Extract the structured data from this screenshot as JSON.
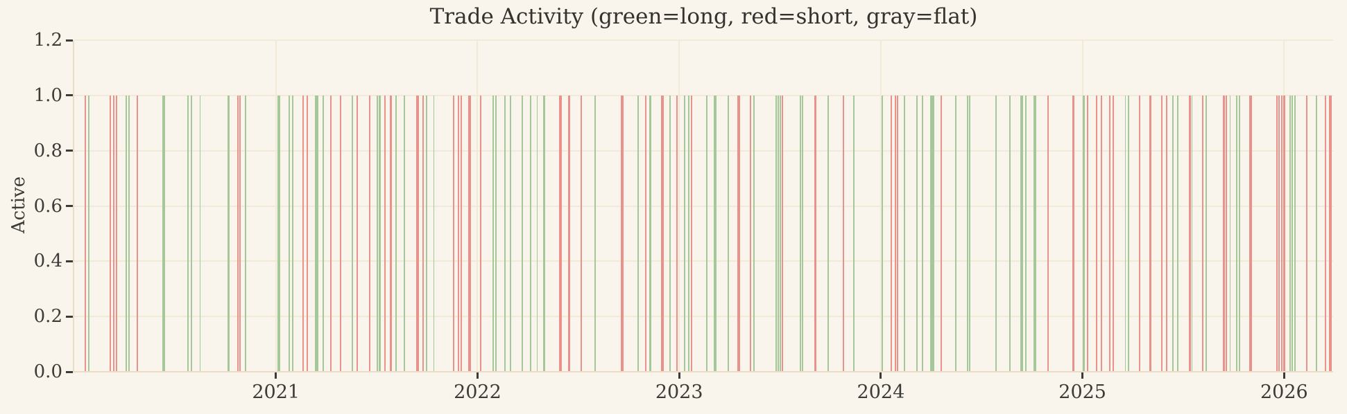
{
  "figure": {
    "background": "#faf5ec"
  },
  "chart_data": {
    "type": "bar",
    "title": "Trade Activity (green=long, red=short, gray=flat)",
    "xlabel": "",
    "ylabel": "Active",
    "x_tick_labels": [
      "2021",
      "2022",
      "2023",
      "2024",
      "2025",
      "2026"
    ],
    "x_tick_values": [
      2021,
      2022,
      2023,
      2024,
      2025,
      2026
    ],
    "xlim": [
      2020.0,
      2026.243
    ],
    "y_tick_labels": [
      "0.0",
      "0.2",
      "0.4",
      "0.6",
      "0.8",
      "1.0",
      "1.2"
    ],
    "y_tick_values": [
      0.0,
      0.2,
      0.4,
      0.6,
      0.8,
      1.0,
      1.2
    ],
    "ylim": [
      0,
      1.2
    ],
    "grid": true,
    "legend_note": "green=long, red=short, gray=flat",
    "bar_value": 1.0,
    "colors": {
      "long": "#a5c89b",
      "short": "#e9928b",
      "flat": "#b3b3b3",
      "grid": "#f2e9d7",
      "spine": "#e8dcc4",
      "text": "#3c3b37",
      "background": "#faf5ec"
    },
    "bars_format": [
      "x_year_fraction",
      "position_type",
      "width_px"
    ],
    "bars": [
      [
        2020.055,
        "short",
        2
      ],
      [
        2020.072,
        "long",
        2
      ],
      [
        2020.179,
        "short",
        2
      ],
      [
        2020.196,
        "short",
        2
      ],
      [
        2020.21,
        "short",
        2
      ],
      [
        2020.258,
        "long",
        2
      ],
      [
        2020.271,
        "long",
        2
      ],
      [
        2020.313,
        "short",
        1.5
      ],
      [
        2020.443,
        "long",
        4
      ],
      [
        2020.563,
        "long",
        2
      ],
      [
        2020.581,
        "long",
        2
      ],
      [
        2020.625,
        "long",
        1.5
      ],
      [
        2020.766,
        "long",
        2.5
      ],
      [
        2020.811,
        "short",
        2
      ],
      [
        2020.821,
        "short",
        2
      ],
      [
        2020.849,
        "long",
        2
      ],
      [
        2021.014,
        "long",
        4
      ],
      [
        2021.065,
        "long",
        2
      ],
      [
        2021.082,
        "long",
        2
      ],
      [
        2021.134,
        "short",
        2
      ],
      [
        2021.155,
        "short",
        2
      ],
      [
        2021.203,
        "long",
        5
      ],
      [
        2021.234,
        "long",
        1.5
      ],
      [
        2021.271,
        "short",
        2
      ],
      [
        2021.32,
        "short",
        2
      ],
      [
        2021.381,
        "long",
        2
      ],
      [
        2021.402,
        "short",
        2
      ],
      [
        2021.467,
        "short",
        2
      ],
      [
        2021.502,
        "long",
        2
      ],
      [
        2021.515,
        "long",
        3
      ],
      [
        2021.54,
        "short",
        2
      ],
      [
        2021.57,
        "short",
        3
      ],
      [
        2021.595,
        "long",
        2
      ],
      [
        2021.639,
        "long",
        2
      ],
      [
        2021.701,
        "short",
        4
      ],
      [
        2021.729,
        "short",
        2
      ],
      [
        2021.749,
        "long",
        2
      ],
      [
        2021.784,
        "long",
        1.5
      ],
      [
        2021.883,
        "short",
        2
      ],
      [
        2021.904,
        "short",
        2
      ],
      [
        2021.921,
        "short",
        2
      ],
      [
        2021.959,
        "short",
        4
      ],
      [
        2022.017,
        "short",
        2
      ],
      [
        2022.079,
        "long",
        2
      ],
      [
        2022.093,
        "long",
        2
      ],
      [
        2022.137,
        "long",
        2
      ],
      [
        2022.162,
        "long",
        2
      ],
      [
        2022.223,
        "long",
        2
      ],
      [
        2022.265,
        "long",
        2
      ],
      [
        2022.296,
        "long",
        1.5
      ],
      [
        2022.33,
        "long",
        3
      ],
      [
        2022.412,
        "short",
        4
      ],
      [
        2022.454,
        "short",
        3
      ],
      [
        2022.515,
        "short",
        2
      ],
      [
        2022.584,
        "long",
        2
      ],
      [
        2022.718,
        "short",
        4
      ],
      [
        2022.797,
        "long",
        2
      ],
      [
        2022.835,
        "short",
        2
      ],
      [
        2022.856,
        "long",
        3
      ],
      [
        2022.918,
        "short",
        4
      ],
      [
        2022.955,
        "long",
        2
      ],
      [
        2022.99,
        "short",
        2
      ],
      [
        2023.027,
        "long",
        2
      ],
      [
        2023.048,
        "long",
        2
      ],
      [
        2023.062,
        "short",
        2
      ],
      [
        2023.137,
        "long",
        2
      ],
      [
        2023.179,
        "long",
        4
      ],
      [
        2023.244,
        "long",
        2
      ],
      [
        2023.296,
        "short",
        4
      ],
      [
        2023.354,
        "short",
        2
      ],
      [
        2023.371,
        "long",
        2
      ],
      [
        2023.481,
        "long",
        2
      ],
      [
        2023.491,
        "long",
        2
      ],
      [
        2023.502,
        "long",
        2
      ],
      [
        2023.512,
        "short",
        2
      ],
      [
        2023.601,
        "long",
        1.5
      ],
      [
        2023.612,
        "long",
        1.5
      ],
      [
        2023.677,
        "short",
        3
      ],
      [
        2023.739,
        "long",
        1.5
      ],
      [
        2023.815,
        "short",
        2
      ],
      [
        2023.866,
        "long",
        1.5
      ],
      [
        2024.007,
        "long",
        2
      ],
      [
        2024.052,
        "short",
        2
      ],
      [
        2024.072,
        "short",
        2
      ],
      [
        2024.082,
        "short",
        2
      ],
      [
        2024.117,
        "long",
        2
      ],
      [
        2024.179,
        "long",
        2
      ],
      [
        2024.206,
        "long",
        1.5
      ],
      [
        2024.254,
        "long",
        6
      ],
      [
        2024.299,
        "short",
        2.5
      ],
      [
        2024.371,
        "long",
        2
      ],
      [
        2024.43,
        "long",
        2
      ],
      [
        2024.44,
        "long",
        2
      ],
      [
        2024.571,
        "long",
        2
      ],
      [
        2024.639,
        "long",
        2
      ],
      [
        2024.698,
        "long",
        4
      ],
      [
        2024.718,
        "long",
        2
      ],
      [
        2024.763,
        "long",
        4
      ],
      [
        2024.828,
        "short",
        2
      ],
      [
        2024.955,
        "short",
        3.5
      ],
      [
        2025.007,
        "long",
        3
      ],
      [
        2025.024,
        "short",
        2
      ],
      [
        2025.069,
        "short",
        2
      ],
      [
        2025.093,
        "short",
        2
      ],
      [
        2025.137,
        "short",
        2
      ],
      [
        2025.151,
        "short",
        2
      ],
      [
        2025.213,
        "long",
        1.5
      ],
      [
        2025.227,
        "long",
        2
      ],
      [
        2025.285,
        "short",
        2
      ],
      [
        2025.337,
        "short",
        3.5
      ],
      [
        2025.395,
        "short",
        2
      ],
      [
        2025.419,
        "short",
        2
      ],
      [
        2025.45,
        "long",
        2
      ],
      [
        2025.471,
        "long",
        2
      ],
      [
        2025.533,
        "short",
        3
      ],
      [
        2025.543,
        "long",
        1.5
      ],
      [
        2025.595,
        "short",
        2
      ],
      [
        2025.612,
        "long",
        2
      ],
      [
        2025.701,
        "short",
        2.5
      ],
      [
        2025.715,
        "short",
        2
      ],
      [
        2025.732,
        "long",
        1.5
      ],
      [
        2025.766,
        "long",
        2
      ],
      [
        2025.777,
        "long",
        2
      ],
      [
        2025.835,
        "short",
        4
      ],
      [
        2025.966,
        "short",
        2
      ],
      [
        2025.976,
        "short",
        2
      ],
      [
        2025.99,
        "short",
        2
      ],
      [
        2026.0,
        "short",
        3
      ],
      [
        2026.031,
        "long",
        2
      ],
      [
        2026.041,
        "long",
        2
      ],
      [
        2026.055,
        "long",
        2
      ],
      [
        2026.113,
        "short",
        2.5
      ],
      [
        2026.162,
        "long",
        2
      ],
      [
        2026.206,
        "short",
        2
      ],
      [
        2026.227,
        "short",
        2
      ],
      [
        2026.234,
        "short",
        2
      ]
    ]
  }
}
